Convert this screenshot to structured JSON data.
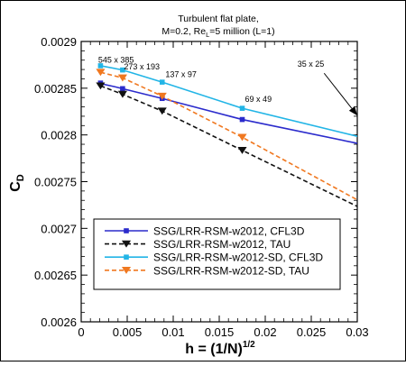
{
  "chart_data": {
    "type": "line",
    "title_line1": "Turbulent flat plate,",
    "title_line2_parts": [
      "M=0.2, Re",
      "L",
      "=5 million (L=1)"
    ],
    "xlabel_parts": [
      "h = (1/N)",
      "1/2"
    ],
    "ylabel_parts": [
      "C",
      "D"
    ],
    "xlim": [
      0,
      0.03
    ],
    "ylim": [
      0.0026,
      0.0029
    ],
    "x_ticks": [
      0,
      0.005,
      0.01,
      0.015,
      0.02,
      0.025,
      0.03
    ],
    "x_tick_labels": [
      "0",
      "0.005",
      "0.01",
      "0.015",
      "0.02",
      "0.025",
      "0.03"
    ],
    "y_ticks": [
      0.0026,
      0.00265,
      0.0027,
      0.00275,
      0.0028,
      0.00285,
      0.0029
    ],
    "y_tick_labels": [
      "0.0026",
      "0.00265",
      "0.0027",
      "0.00275",
      "0.0028",
      "0.00285",
      "0.0029"
    ],
    "grid": false,
    "legend_position": "bottom-center",
    "annotations": [
      {
        "text": "545 x 385",
        "x": 0.00185,
        "y": 0.0028775
      },
      {
        "text": "273 x 193",
        "x": 0.00465,
        "y": 0.00287
      },
      {
        "text": "137 x 97",
        "x": 0.00915,
        "y": 0.002862
      },
      {
        "text": "69 x 49",
        "x": 0.0178,
        "y": 0.0028355
      },
      {
        "text": "35 x 25",
        "x": 0.0235,
        "y": 0.002873
      }
    ],
    "arrow": {
      "from": [
        0.0264,
        0.002866
      ],
      "to": [
        0.02995,
        0.0028215
      ]
    },
    "series": [
      {
        "name": "SSG/LRR-RSM-w2012, CFL3D",
        "color": "#2b2bcc",
        "dash": "solid",
        "marker": "square",
        "x": [
          0.001837,
          0.003663,
          0.007311,
          0.014577,
          0.02898
        ],
        "y": [
          0.0028555,
          0.0028515,
          0.002842,
          0.002816,
          0.00279
        ],
        "line_x": [
          0.001837,
          0.003663,
          0.0045,
          0.0088,
          0.0175,
          0.03
        ],
        "line_y": [
          0.0028555,
          0.0028515,
          0.0028495,
          0.002839,
          0.0028165,
          0.002791
        ],
        "marker_x": [
          0.0021,
          0.0045,
          0.0088,
          0.0175
        ],
        "marker_y": [
          0.0028555,
          0.0028495,
          0.002839,
          0.0028165
        ]
      },
      {
        "name": "SSG/LRR-RSM-w2012, TAU",
        "color": "#111111",
        "dash": "dashed",
        "marker": "triangle-down",
        "line_x": [
          0.0021,
          0.0045,
          0.0088,
          0.0175,
          0.03
        ],
        "line_y": [
          0.0028525,
          0.0028435,
          0.0028255,
          0.0027835,
          0.0027235
        ],
        "marker_x": [
          0.0021,
          0.0045,
          0.0088,
          0.0175
        ],
        "marker_y": [
          0.0028525,
          0.0028435,
          0.0028255,
          0.0027835
        ]
      },
      {
        "name": "SSG/LRR-RSM-w2012-SD, CFL3D",
        "color": "#22b5e6",
        "dash": "solid",
        "marker": "square",
        "line_x": [
          0.0021,
          0.0045,
          0.0088,
          0.0175,
          0.03
        ],
        "line_y": [
          0.002874,
          0.0028695,
          0.0028565,
          0.0028285,
          0.0027985
        ],
        "marker_x": [
          0.0021,
          0.0045,
          0.0088,
          0.0175
        ],
        "marker_y": [
          0.002874,
          0.0028695,
          0.0028565,
          0.0028285
        ]
      },
      {
        "name": "SSG/LRR-RSM-w2012-SD, TAU",
        "color": "#f07820",
        "dash": "dashed",
        "marker": "triangle-down",
        "line_x": [
          0.0021,
          0.0045,
          0.0088,
          0.0175,
          0.03
        ],
        "line_y": [
          0.002867,
          0.002861,
          0.0028415,
          0.0027975,
          0.0027305
        ],
        "marker_x": [
          0.0021,
          0.0045,
          0.0088,
          0.0175
        ],
        "marker_y": [
          0.002867,
          0.002861,
          0.0028415,
          0.0027975
        ]
      }
    ]
  }
}
